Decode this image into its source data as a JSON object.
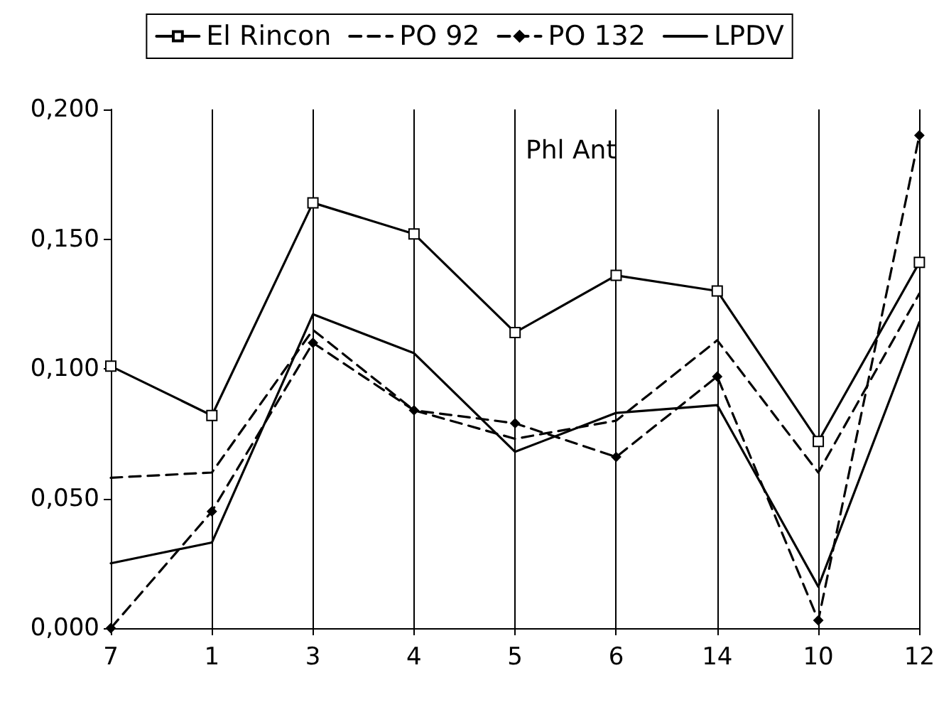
{
  "chart_data": {
    "type": "line",
    "categories": [
      "7",
      "1",
      "3",
      "4",
      "5",
      "6",
      "14",
      "10",
      "12"
    ],
    "series": [
      {
        "name": "El Rincon",
        "color": "#000000",
        "marker": "square",
        "line_style": "solid",
        "values": [
          0.101,
          0.082,
          0.164,
          0.152,
          0.114,
          0.136,
          0.13,
          0.072,
          0.141
        ]
      },
      {
        "name": "PO 92",
        "color": "#000000",
        "marker": "none",
        "line_style": "dashed",
        "values": [
          0.058,
          0.06,
          0.115,
          0.084,
          0.073,
          0.08,
          0.111,
          0.06,
          0.129
        ]
      },
      {
        "name": "PO 132",
        "color": "#000000",
        "marker": "diamond",
        "line_style": "dashed",
        "values": [
          0.0,
          0.045,
          0.11,
          0.084,
          0.079,
          0.066,
          0.097,
          0.003,
          0.19
        ]
      },
      {
        "name": "LPDV",
        "color": "#000000",
        "marker": "none",
        "line_style": "solid",
        "values": [
          0.025,
          0.033,
          0.121,
          0.106,
          0.068,
          0.083,
          0.086,
          0.016,
          0.118
        ]
      }
    ],
    "ylim": [
      0,
      0.2
    ],
    "yticks": [
      {
        "value": 0,
        "label": "0,000"
      },
      {
        "value": 0.05,
        "label": "0,050"
      },
      {
        "value": 0.1,
        "label": "0,100"
      },
      {
        "value": 0.15,
        "label": "0,150"
      },
      {
        "value": 0.2,
        "label": "0,200"
      }
    ],
    "annotations": [
      "Phl Ant"
    ],
    "grid": "x",
    "legend": "top"
  }
}
